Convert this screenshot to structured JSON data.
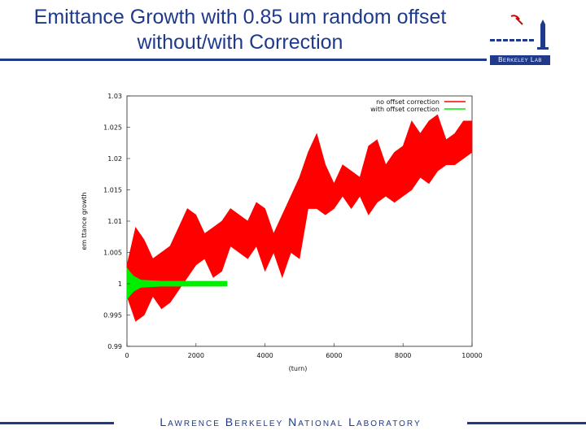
{
  "slide": {
    "title_line1": "Emittance Growth with 0.85 um random offset",
    "title_line2": "without/with Correction",
    "logo_text": "Berkeley Lab",
    "footer": "Lawrence Berkeley National Laboratory"
  },
  "colors": {
    "title": "#1f3a8a",
    "no_correction": "#ff0000",
    "with_correction": "#00ee00"
  },
  "chart_data": {
    "type": "line",
    "xlabel": "(turn)",
    "ylabel": "em ttance growth",
    "xlim": [
      0,
      10000
    ],
    "ylim": [
      0.99,
      1.03
    ],
    "xticks": [
      "0",
      "2000",
      "4000",
      "6000",
      "8000",
      "10000"
    ],
    "yticks": [
      "0.99",
      "0.995",
      "1",
      "1.005",
      "1.01",
      "1.015",
      "1.02",
      "1.025",
      "1.03"
    ],
    "legend_position": "top-right",
    "grid": false,
    "series": [
      {
        "name": "no offset correction",
        "color": "#ff0000",
        "x": [
          0,
          250,
          500,
          750,
          1000,
          1250,
          1500,
          1750,
          2000,
          2250,
          2500,
          2750,
          3000,
          3250,
          3500,
          3750,
          4000,
          4250,
          4500,
          4750,
          5000,
          5250,
          5500,
          5750,
          6000,
          6250,
          6500,
          6750,
          7000,
          7250,
          7500,
          7750,
          8000,
          8250,
          8500,
          8750,
          9000,
          9250,
          9500,
          9750,
          10000
        ],
        "upper": [
          1.003,
          1.009,
          1.007,
          1.004,
          1.005,
          1.006,
          1.009,
          1.012,
          1.011,
          1.008,
          1.009,
          1.01,
          1.012,
          1.011,
          1.01,
          1.013,
          1.012,
          1.008,
          1.011,
          1.014,
          1.017,
          1.021,
          1.024,
          1.019,
          1.016,
          1.019,
          1.018,
          1.017,
          1.022,
          1.023,
          1.019,
          1.021,
          1.022,
          1.026,
          1.024,
          1.026,
          1.027,
          1.023,
          1.024,
          1.026,
          1.026
        ],
        "lower": [
          0.998,
          0.994,
          0.995,
          0.998,
          0.996,
          0.997,
          0.999,
          1.001,
          1.003,
          1.004,
          1.001,
          1.002,
          1.006,
          1.005,
          1.004,
          1.006,
          1.002,
          1.005,
          1.001,
          1.005,
          1.004,
          1.012,
          1.012,
          1.011,
          1.012,
          1.014,
          1.012,
          1.014,
          1.011,
          1.013,
          1.014,
          1.013,
          1.014,
          1.015,
          1.017,
          1.016,
          1.018,
          1.019,
          1.019,
          1.02,
          1.021
        ]
      },
      {
        "name": "with offset correction",
        "color": "#00ee00",
        "x": [
          0,
          100,
          200,
          400,
          700,
          1000,
          1500,
          2000,
          2500,
          2900
        ],
        "upper": [
          1.0025,
          1.0018,
          1.0012,
          1.0006,
          1.0005,
          1.0004,
          1.0004,
          1.0004,
          1.0004,
          1.0004
        ],
        "lower": [
          0.9975,
          0.9982,
          0.9988,
          0.9994,
          0.9995,
          0.9996,
          0.9996,
          0.9996,
          0.9996,
          0.9996
        ]
      }
    ]
  }
}
